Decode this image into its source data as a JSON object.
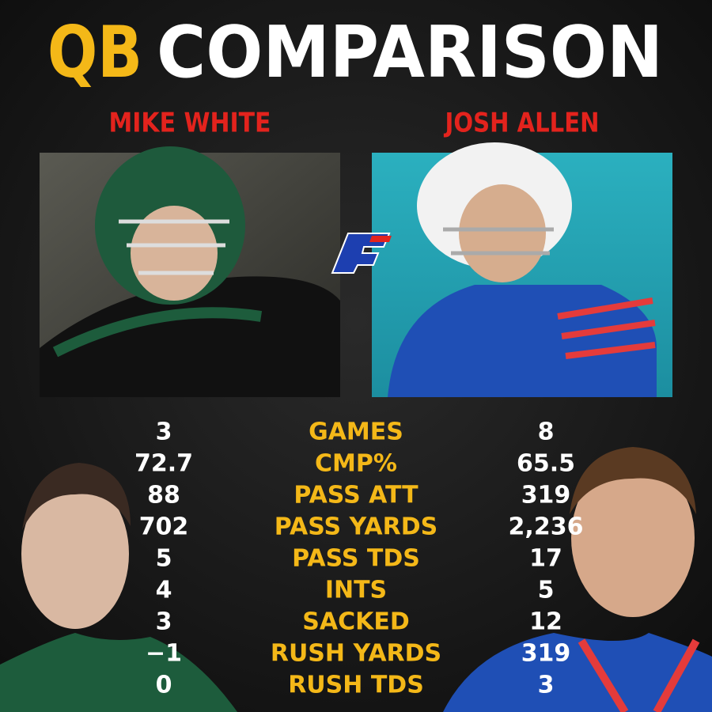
{
  "title": {
    "part1": "QB",
    "part2": "COMPARISON"
  },
  "players": [
    {
      "name": "MIKE WHITE"
    },
    {
      "name": "JOSH ALLEN"
    }
  ],
  "stats": {
    "rows": [
      {
        "left": "3",
        "label": "GAMES",
        "right": "8"
      },
      {
        "left": "72.7",
        "label": "CMP%",
        "right": "65.5"
      },
      {
        "left": "88",
        "label": "PASS ATT",
        "right": "319"
      },
      {
        "left": "702",
        "label": "PASS YARDS",
        "right": "2,236"
      },
      {
        "left": "5",
        "label": "PASS TDS",
        "right": "17"
      },
      {
        "left": "4",
        "label": "INTS",
        "right": "5"
      },
      {
        "left": "3",
        "label": "SACKED",
        "right": "12"
      },
      {
        "left": "−1",
        "label": "RUSH YARDS",
        "right": "319"
      },
      {
        "left": "0",
        "label": "RUSH TDS",
        "right": "3"
      }
    ]
  }
}
